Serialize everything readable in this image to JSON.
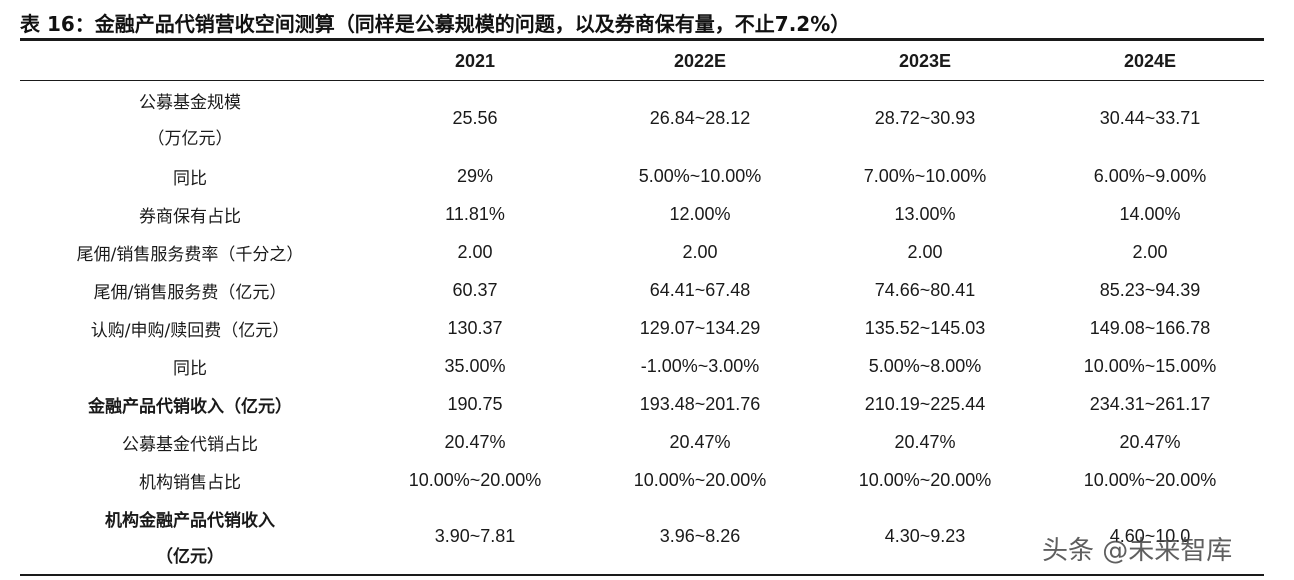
{
  "title": "表 16：金融产品代销营收空间测算（同样是公募规模的问题，以及券商保有量，不止7.2%）",
  "headers": [
    "",
    "2021",
    "2022E",
    "2023E",
    "2024E"
  ],
  "rows": [
    {
      "label": "公募基金规模",
      "label2": "（万亿元）",
      "values": [
        "25.56",
        "26.84~28.12",
        "28.72~30.93",
        "30.44~33.71"
      ]
    },
    {
      "label": "同比",
      "values": [
        "29%",
        "5.00%~10.00%",
        "7.00%~10.00%",
        "6.00%~9.00%"
      ]
    },
    {
      "label": "券商保有占比",
      "values": [
        "11.81%",
        "12.00%",
        "13.00%",
        "14.00%"
      ]
    },
    {
      "label": "尾佣/销售服务费率（千分之）",
      "values": [
        "2.00",
        "2.00",
        "2.00",
        "2.00"
      ]
    },
    {
      "label": "尾佣/销售服务费（亿元）",
      "values": [
        "60.37",
        "64.41~67.48",
        "74.66~80.41",
        "85.23~94.39"
      ]
    },
    {
      "label": "认购/申购/赎回费（亿元）",
      "values": [
        "130.37",
        "129.07~134.29",
        "135.52~145.03",
        "149.08~166.78"
      ]
    },
    {
      "label": "同比",
      "values": [
        "35.00%",
        "-1.00%~3.00%",
        "5.00%~8.00%",
        "10.00%~15.00%"
      ]
    },
    {
      "label": "金融产品代销收入（亿元）",
      "values": [
        "190.75",
        "193.48~201.76",
        "210.19~225.44",
        "234.31~261.17"
      ]
    },
    {
      "label": "公募基金代销占比",
      "values": [
        "20.47%",
        "20.47%",
        "20.47%",
        "20.47%"
      ]
    },
    {
      "label": "机构销售占比",
      "values": [
        "10.00%~20.00%",
        "10.00%~20.00%",
        "10.00%~20.00%",
        "10.00%~20.00%"
      ]
    },
    {
      "label": "机构金融产品代销收入",
      "label2": "（亿元）",
      "values": [
        "3.90~7.81",
        "3.96~8.26",
        "4.30~9.23",
        "4.60~10.0"
      ]
    }
  ],
  "watermark": "头条 @未来智库"
}
